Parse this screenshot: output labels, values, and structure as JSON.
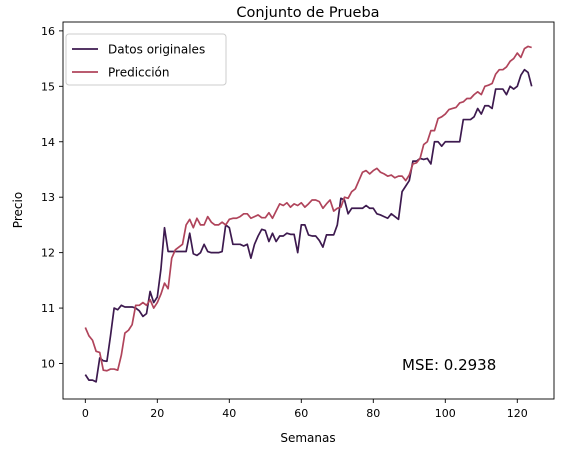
{
  "chart_data": {
    "type": "line",
    "title": "Conjunto de Prueba",
    "xlabel": "Semanas",
    "ylabel": "Precio",
    "xlim": [
      -6.2,
      130.2
    ],
    "ylim": [
      9.36,
      16.16
    ],
    "xticks": [
      0,
      20,
      40,
      60,
      80,
      100,
      120
    ],
    "xtick_labels": [
      "0",
      "20",
      "40",
      "60",
      "80",
      "100",
      "120"
    ],
    "yticks": [
      10,
      11,
      12,
      13,
      14,
      15,
      16
    ],
    "ytick_labels": [
      "10",
      "11",
      "12",
      "13",
      "14",
      "15",
      "16"
    ],
    "grid": false,
    "legend_position": "top-left",
    "annotation": "MSE: 0.2938",
    "series": [
      {
        "name": "Datos originales",
        "color": "#3d1a4f",
        "points": [
          [
            0,
            9.8
          ],
          [
            1,
            9.7
          ],
          [
            2,
            9.7
          ],
          [
            3,
            9.67
          ],
          [
            4,
            10.1
          ],
          [
            5,
            10.05
          ],
          [
            6,
            10.04
          ],
          [
            7,
            10.5
          ],
          [
            8,
            11.0
          ],
          [
            9,
            10.97
          ],
          [
            10,
            11.05
          ],
          [
            11,
            11.02
          ],
          [
            12,
            11.02
          ],
          [
            13,
            11.02
          ],
          [
            14,
            11.0
          ],
          [
            15,
            10.95
          ],
          [
            16,
            10.85
          ],
          [
            17,
            10.9
          ],
          [
            18,
            11.3
          ],
          [
            19,
            11.1
          ],
          [
            20,
            11.2
          ],
          [
            21,
            11.7
          ],
          [
            22,
            12.45
          ],
          [
            23,
            12.02
          ],
          [
            24,
            12.02
          ],
          [
            25,
            12.02
          ],
          [
            26,
            12.02
          ],
          [
            27,
            12.02
          ],
          [
            28,
            12.02
          ],
          [
            29,
            12.35
          ],
          [
            30,
            11.98
          ],
          [
            31,
            11.95
          ],
          [
            32,
            12.0
          ],
          [
            33,
            12.15
          ],
          [
            34,
            12.02
          ],
          [
            35,
            12.0
          ],
          [
            36,
            12.0
          ],
          [
            37,
            12.0
          ],
          [
            38,
            12.02
          ],
          [
            39,
            12.5
          ],
          [
            40,
            12.45
          ],
          [
            41,
            12.15
          ],
          [
            42,
            12.15
          ],
          [
            43,
            12.15
          ],
          [
            44,
            12.12
          ],
          [
            45,
            12.15
          ],
          [
            46,
            11.9
          ],
          [
            47,
            12.15
          ],
          [
            48,
            12.3
          ],
          [
            49,
            12.42
          ],
          [
            50,
            12.4
          ],
          [
            51,
            12.2
          ],
          [
            52,
            12.35
          ],
          [
            53,
            12.2
          ],
          [
            54,
            12.3
          ],
          [
            55,
            12.3
          ],
          [
            56,
            12.35
          ],
          [
            57,
            12.33
          ],
          [
            58,
            12.33
          ],
          [
            59,
            12.0
          ],
          [
            60,
            12.5
          ],
          [
            61,
            12.5
          ],
          [
            62,
            12.32
          ],
          [
            63,
            12.3
          ],
          [
            64,
            12.3
          ],
          [
            65,
            12.22
          ],
          [
            66,
            12.1
          ],
          [
            67,
            12.32
          ],
          [
            68,
            12.32
          ],
          [
            69,
            12.32
          ],
          [
            70,
            12.5
          ],
          [
            71,
            12.98
          ],
          [
            72,
            12.95
          ],
          [
            73,
            12.7
          ],
          [
            74,
            12.8
          ],
          [
            75,
            12.8
          ],
          [
            76,
            12.8
          ],
          [
            77,
            12.8
          ],
          [
            78,
            12.85
          ],
          [
            79,
            12.8
          ],
          [
            80,
            12.8
          ],
          [
            81,
            12.7
          ],
          [
            82,
            12.68
          ],
          [
            83,
            12.65
          ],
          [
            84,
            12.62
          ],
          [
            85,
            12.7
          ],
          [
            86,
            12.65
          ],
          [
            87,
            12.6
          ],
          [
            88,
            13.1
          ],
          [
            89,
            13.2
          ],
          [
            90,
            13.3
          ],
          [
            91,
            13.65
          ],
          [
            92,
            13.65
          ],
          [
            93,
            13.7
          ],
          [
            94,
            13.68
          ],
          [
            95,
            13.7
          ],
          [
            96,
            13.6
          ],
          [
            97,
            14.0
          ],
          [
            98,
            14.0
          ],
          [
            99,
            13.92
          ],
          [
            100,
            14.0
          ],
          [
            101,
            14.0
          ],
          [
            102,
            14.0
          ],
          [
            103,
            14.0
          ],
          [
            104,
            14.0
          ],
          [
            105,
            14.4
          ],
          [
            106,
            14.4
          ],
          [
            107,
            14.4
          ],
          [
            108,
            14.45
          ],
          [
            109,
            14.6
          ],
          [
            110,
            14.5
          ],
          [
            111,
            14.65
          ],
          [
            112,
            14.65
          ],
          [
            113,
            14.6
          ],
          [
            114,
            14.95
          ],
          [
            115,
            14.95
          ],
          [
            116,
            14.95
          ],
          [
            117,
            14.85
          ],
          [
            118,
            15.0
          ],
          [
            119,
            14.95
          ],
          [
            120,
            15.0
          ],
          [
            121,
            15.2
          ],
          [
            122,
            15.3
          ],
          [
            123,
            15.25
          ],
          [
            124,
            15.0
          ]
        ]
      },
      {
        "name": "Predicción",
        "color": "#b0445b",
        "points": [
          [
            0,
            10.65
          ],
          [
            1,
            10.5
          ],
          [
            2,
            10.42
          ],
          [
            3,
            10.22
          ],
          [
            4,
            10.2
          ],
          [
            5,
            9.88
          ],
          [
            6,
            9.87
          ],
          [
            7,
            9.9
          ],
          [
            8,
            9.9
          ],
          [
            9,
            9.88
          ],
          [
            10,
            10.15
          ],
          [
            11,
            10.55
          ],
          [
            12,
            10.6
          ],
          [
            13,
            10.7
          ],
          [
            14,
            11.05
          ],
          [
            15,
            11.05
          ],
          [
            16,
            11.1
          ],
          [
            17,
            11.05
          ],
          [
            18,
            11.15
          ],
          [
            19,
            11.0
          ],
          [
            20,
            11.1
          ],
          [
            21,
            11.25
          ],
          [
            22,
            11.45
          ],
          [
            23,
            11.35
          ],
          [
            24,
            11.9
          ],
          [
            25,
            12.05
          ],
          [
            26,
            12.1
          ],
          [
            27,
            12.15
          ],
          [
            28,
            12.5
          ],
          [
            29,
            12.6
          ],
          [
            30,
            12.45
          ],
          [
            31,
            12.62
          ],
          [
            32,
            12.5
          ],
          [
            33,
            12.5
          ],
          [
            34,
            12.65
          ],
          [
            35,
            12.55
          ],
          [
            36,
            12.5
          ],
          [
            37,
            12.5
          ],
          [
            38,
            12.55
          ],
          [
            39,
            12.5
          ],
          [
            40,
            12.6
          ],
          [
            41,
            12.62
          ],
          [
            42,
            12.62
          ],
          [
            43,
            12.65
          ],
          [
            44,
            12.7
          ],
          [
            45,
            12.7
          ],
          [
            46,
            12.62
          ],
          [
            47,
            12.65
          ],
          [
            48,
            12.68
          ],
          [
            49,
            12.63
          ],
          [
            50,
            12.63
          ],
          [
            51,
            12.72
          ],
          [
            52,
            12.62
          ],
          [
            53,
            12.75
          ],
          [
            54,
            12.88
          ],
          [
            55,
            12.85
          ],
          [
            56,
            12.9
          ],
          [
            57,
            12.82
          ],
          [
            58,
            12.88
          ],
          [
            59,
            12.85
          ],
          [
            60,
            12.9
          ],
          [
            61,
            12.82
          ],
          [
            62,
            12.88
          ],
          [
            63,
            12.95
          ],
          [
            64,
            12.95
          ],
          [
            65,
            12.92
          ],
          [
            66,
            12.8
          ],
          [
            67,
            12.88
          ],
          [
            68,
            12.95
          ],
          [
            69,
            12.75
          ],
          [
            70,
            12.8
          ],
          [
            71,
            12.82
          ],
          [
            72,
            13.0
          ],
          [
            73,
            12.98
          ],
          [
            74,
            13.1
          ],
          [
            75,
            13.15
          ],
          [
            76,
            13.3
          ],
          [
            77,
            13.45
          ],
          [
            78,
            13.48
          ],
          [
            79,
            13.42
          ],
          [
            80,
            13.48
          ],
          [
            81,
            13.52
          ],
          [
            82,
            13.45
          ],
          [
            83,
            13.42
          ],
          [
            84,
            13.38
          ],
          [
            85,
            13.4
          ],
          [
            86,
            13.35
          ],
          [
            87,
            13.38
          ],
          [
            88,
            13.38
          ],
          [
            89,
            13.3
          ],
          [
            90,
            13.4
          ],
          [
            91,
            13.6
          ],
          [
            92,
            13.62
          ],
          [
            93,
            13.7
          ],
          [
            94,
            13.95
          ],
          [
            95,
            14.0
          ],
          [
            96,
            14.2
          ],
          [
            97,
            14.2
          ],
          [
            98,
            14.42
          ],
          [
            99,
            14.45
          ],
          [
            100,
            14.5
          ],
          [
            101,
            14.58
          ],
          [
            102,
            14.6
          ],
          [
            103,
            14.62
          ],
          [
            104,
            14.7
          ],
          [
            105,
            14.72
          ],
          [
            106,
            14.78
          ],
          [
            107,
            14.78
          ],
          [
            108,
            14.85
          ],
          [
            109,
            14.9
          ],
          [
            110,
            14.85
          ],
          [
            111,
            15.0
          ],
          [
            112,
            15.02
          ],
          [
            113,
            15.05
          ],
          [
            114,
            15.22
          ],
          [
            115,
            15.3
          ],
          [
            116,
            15.3
          ],
          [
            117,
            15.35
          ],
          [
            118,
            15.45
          ],
          [
            119,
            15.5
          ],
          [
            120,
            15.6
          ],
          [
            121,
            15.52
          ],
          [
            122,
            15.68
          ],
          [
            123,
            15.72
          ],
          [
            124,
            15.7
          ]
        ]
      }
    ]
  }
}
